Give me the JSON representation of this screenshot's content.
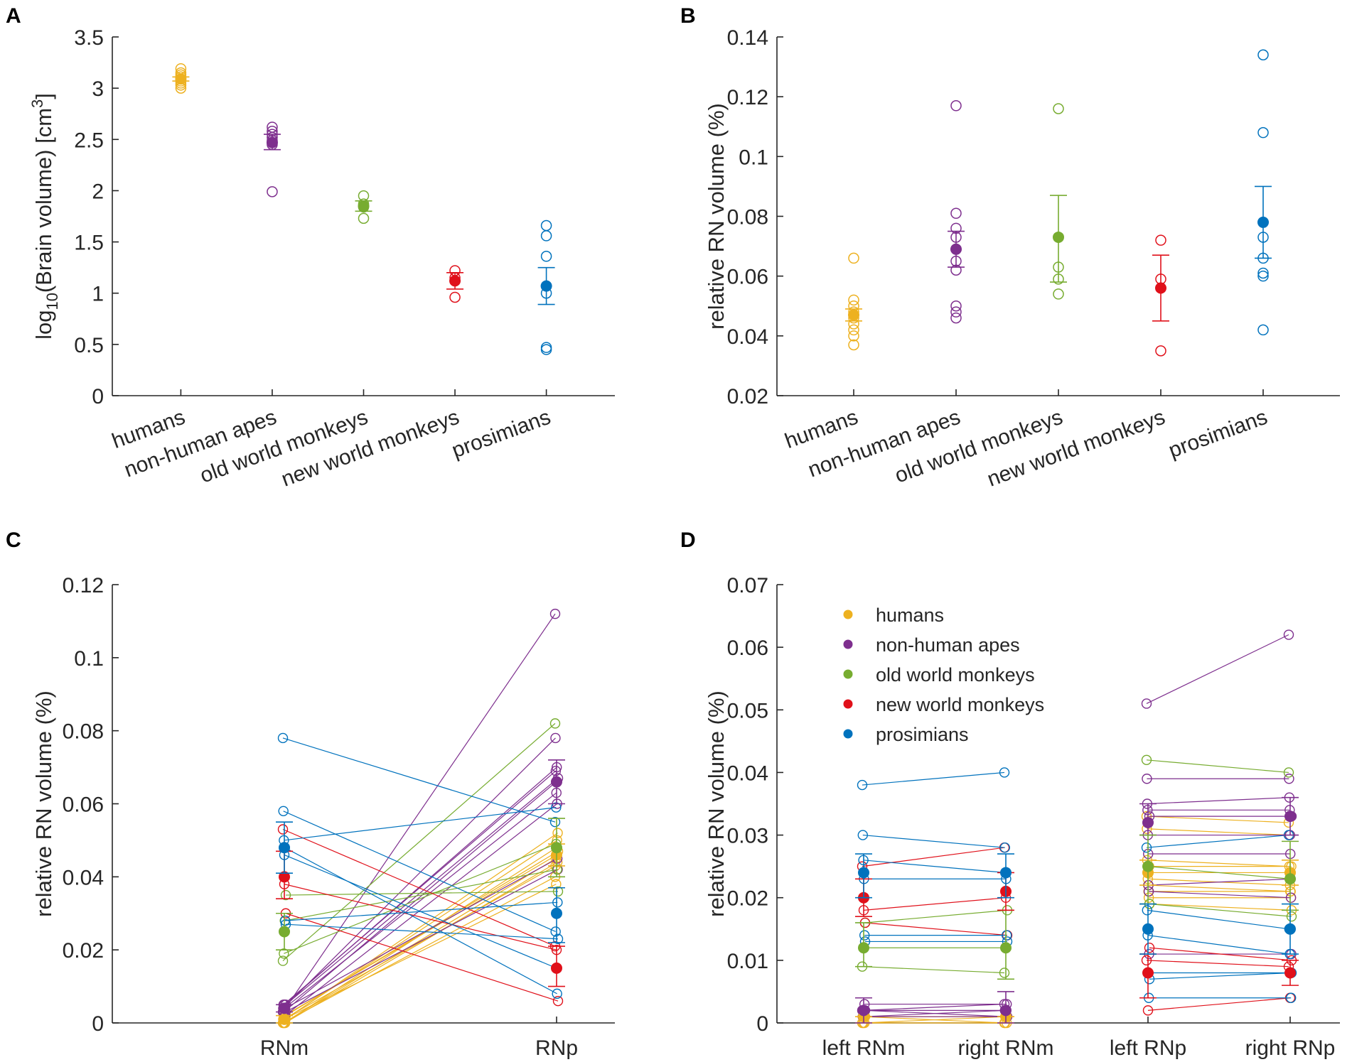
{
  "colors": {
    "humans": "#EDB120",
    "non-human apes": "#7E2F8E",
    "old world monkeys": "#77AC30",
    "new world monkeys": "#E0101A",
    "prosimians": "#0072BD"
  },
  "chart_data": [
    {
      "panel": "A",
      "type": "scatter",
      "categories": [
        "humans",
        "non-human apes",
        "old world monkeys",
        "new world monkeys",
        "prosimians"
      ],
      "ylabel_main": "log",
      "ylabel_sub": "10",
      "ylabel_rest": "(Brain volume) [cm",
      "ylabel_sup": "3",
      "ylabel_end": "]",
      "ylim": [
        0,
        3.5
      ],
      "yticks": [
        0,
        0.5,
        1,
        1.5,
        2,
        2.5,
        3,
        3.5
      ],
      "ytick_labels": [
        "0",
        "0.5",
        "1",
        "1.5",
        "2",
        "2.5",
        "3",
        "3.5"
      ],
      "series": [
        {
          "name": "humans",
          "points": [
            3.0,
            3.03,
            3.05,
            3.07,
            3.09,
            3.11,
            3.13,
            3.15,
            3.19
          ],
          "mean": 3.09,
          "err": [
            3.07,
            3.11
          ]
        },
        {
          "name": "non-human apes",
          "points": [
            1.99,
            2.45,
            2.47,
            2.49,
            2.52,
            2.55,
            2.58,
            2.62
          ],
          "mean": 2.47,
          "err": [
            2.4,
            2.55
          ]
        },
        {
          "name": "old world monkeys",
          "points": [
            1.73,
            1.84,
            1.87,
            1.95
          ],
          "mean": 1.85,
          "err": [
            1.8,
            1.9
          ]
        },
        {
          "name": "new world monkeys",
          "points": [
            0.96,
            1.15,
            1.22
          ],
          "mean": 1.12,
          "err": [
            1.04,
            1.2
          ]
        },
        {
          "name": "prosimians",
          "points": [
            0.45,
            0.47,
            1.0,
            1.36,
            1.56,
            1.66
          ],
          "mean": 1.07,
          "err": [
            0.89,
            1.25
          ]
        }
      ]
    },
    {
      "panel": "B",
      "type": "scatter",
      "categories": [
        "humans",
        "non-human apes",
        "old world monkeys",
        "new world monkeys",
        "prosimians"
      ],
      "ylabel": "relative RN volume (%)",
      "ylim": [
        0.02,
        0.14
      ],
      "yticks": [
        0.02,
        0.04,
        0.06,
        0.08,
        0.1,
        0.12,
        0.14
      ],
      "ytick_labels": [
        "0.02",
        "0.04",
        "0.06",
        "0.08",
        "0.1",
        "0.12",
        "0.14"
      ],
      "series": [
        {
          "name": "humans",
          "points": [
            0.037,
            0.04,
            0.042,
            0.044,
            0.046,
            0.047,
            0.048,
            0.05,
            0.052,
            0.066
          ],
          "mean": 0.047,
          "err": [
            0.045,
            0.049
          ]
        },
        {
          "name": "non-human apes",
          "points": [
            0.046,
            0.048,
            0.05,
            0.062,
            0.065,
            0.069,
            0.073,
            0.076,
            0.081,
            0.117
          ],
          "mean": 0.069,
          "err": [
            0.063,
            0.075
          ]
        },
        {
          "name": "old world monkeys",
          "points": [
            0.054,
            0.059,
            0.063,
            0.116
          ],
          "mean": 0.073,
          "err": [
            0.058,
            0.087
          ]
        },
        {
          "name": "new world monkeys",
          "points": [
            0.035,
            0.059,
            0.072
          ],
          "mean": 0.056,
          "err": [
            0.045,
            0.067
          ]
        },
        {
          "name": "prosimians",
          "points": [
            0.042,
            0.06,
            0.061,
            0.066,
            0.073,
            0.108,
            0.134
          ],
          "mean": 0.078,
          "err": [
            0.066,
            0.09
          ]
        }
      ]
    },
    {
      "panel": "C",
      "type": "line",
      "categories": [
        "RNm",
        "RNp"
      ],
      "ylabel": "relative RN volume (%)",
      "ylim": [
        0,
        0.12
      ],
      "yticks": [
        0,
        0.02,
        0.04,
        0.06,
        0.08,
        0.1,
        0.12
      ],
      "ytick_labels": [
        "0",
        "0.02",
        "0.04",
        "0.06",
        "0.08",
        "0.1",
        "0.12"
      ],
      "series": [
        {
          "name": "humans",
          "pairs": [
            [
              0.0,
              0.04
            ],
            [
              0.001,
              0.043
            ],
            [
              0.0,
              0.045
            ],
            [
              0.001,
              0.038
            ],
            [
              0.0,
              0.048
            ],
            [
              0.002,
              0.046
            ],
            [
              0.001,
              0.05
            ],
            [
              0.0,
              0.044
            ],
            [
              0.001,
              0.052
            ],
            [
              0.002,
              0.047
            ]
          ],
          "mean": [
            0.001,
            0.046
          ],
          "err": [
            [
              0.0,
              0.002
            ],
            [
              0.043,
              0.049
            ]
          ]
        },
        {
          "name": "non-human apes",
          "pairs": [
            [
              0.003,
              0.112
            ],
            [
              0.004,
              0.078
            ],
            [
              0.005,
              0.069
            ],
            [
              0.003,
              0.066
            ],
            [
              0.004,
              0.063
            ],
            [
              0.005,
              0.07
            ],
            [
              0.002,
              0.06
            ],
            [
              0.004,
              0.045
            ],
            [
              0.003,
              0.042
            ],
            [
              0.005,
              0.067
            ]
          ],
          "mean": [
            0.004,
            0.066
          ],
          "err": [
            [
              0.003,
              0.005
            ],
            [
              0.06,
              0.072
            ]
          ]
        },
        {
          "name": "old world monkeys",
          "pairs": [
            [
              0.017,
              0.082
            ],
            [
              0.019,
              0.049
            ],
            [
              0.028,
              0.042
            ],
            [
              0.035,
              0.036
            ]
          ],
          "mean": [
            0.025,
            0.048
          ],
          "err": [
            [
              0.02,
              0.03
            ],
            [
              0.04,
              0.056
            ]
          ]
        },
        {
          "name": "new world monkeys",
          "pairs": [
            [
              0.053,
              0.021
            ],
            [
              0.038,
              0.02
            ],
            [
              0.03,
              0.006
            ]
          ],
          "mean": [
            0.04,
            0.015
          ],
          "err": [
            [
              0.034,
              0.047
            ],
            [
              0.01,
              0.021
            ]
          ]
        },
        {
          "name": "prosimians",
          "pairs": [
            [
              0.078,
              0.055
            ],
            [
              0.058,
              0.025
            ],
            [
              0.05,
              0.059
            ],
            [
              0.046,
              0.015
            ],
            [
              0.048,
              0.008
            ],
            [
              0.028,
              0.033
            ],
            [
              0.027,
              0.023
            ]
          ],
          "mean": [
            0.048,
            0.03
          ],
          "err": [
            [
              0.041,
              0.055
            ],
            [
              0.022,
              0.037
            ]
          ]
        }
      ]
    },
    {
      "panel": "D",
      "type": "line",
      "categories": [
        "left RNm",
        "right RNm",
        "left RNp",
        "right RNp"
      ],
      "ylabel": "relative RN volume (%)",
      "ylim": [
        0,
        0.07
      ],
      "yticks": [
        0,
        0.01,
        0.02,
        0.03,
        0.04,
        0.05,
        0.06,
        0.07
      ],
      "ytick_labels": [
        "0",
        "0.01",
        "0.02",
        "0.03",
        "0.04",
        "0.05",
        "0.06",
        "0.07"
      ],
      "legend": [
        "humans",
        "non-human apes",
        "old world monkeys",
        "new world monkeys",
        "prosimians"
      ],
      "series": [
        {
          "name": "humans",
          "m_pairs": [
            [
              0.0,
              0.0
            ],
            [
              0.001,
              0.0
            ],
            [
              0.0,
              0.001
            ],
            [
              0.001,
              0.001
            ],
            [
              0.0,
              0.0
            ],
            [
              0.001,
              0.001
            ]
          ],
          "p_pairs": [
            [
              0.033,
              0.032
            ],
            [
              0.031,
              0.03
            ],
            [
              0.026,
              0.025
            ],
            [
              0.024,
              0.024
            ],
            [
              0.023,
              0.022
            ],
            [
              0.022,
              0.021
            ],
            [
              0.021,
              0.021
            ],
            [
              0.02,
              0.02
            ],
            [
              0.025,
              0.025
            ],
            [
              0.019,
              0.018
            ]
          ],
          "mean": [
            0.001,
            0.001,
            0.024,
            0.024
          ],
          "err": [
            [
              0.0,
              0.001
            ],
            [
              0.0,
              0.001
            ],
            [
              0.022,
              0.026
            ],
            [
              0.022,
              0.026
            ]
          ]
        },
        {
          "name": "non-human apes",
          "m_pairs": [
            [
              0.002,
              0.003
            ],
            [
              0.001,
              0.002
            ],
            [
              0.002,
              0.002
            ],
            [
              0.001,
              0.001
            ],
            [
              0.003,
              0.003
            ],
            [
              0.002,
              0.001
            ]
          ],
          "p_pairs": [
            [
              0.051,
              0.062
            ],
            [
              0.039,
              0.039
            ],
            [
              0.035,
              0.036
            ],
            [
              0.034,
              0.034
            ],
            [
              0.03,
              0.03
            ],
            [
              0.027,
              0.027
            ],
            [
              0.022,
              0.023
            ],
            [
              0.021,
              0.02
            ],
            [
              0.011,
              0.011
            ],
            [
              0.033,
              0.033
            ]
          ],
          "mean": [
            0.002,
            0.002,
            0.032,
            0.033
          ],
          "err": [
            [
              0.0,
              0.004
            ],
            [
              0.0,
              0.005
            ],
            [
              0.03,
              0.035
            ],
            [
              0.03,
              0.036
            ]
          ]
        },
        {
          "name": "old world monkeys",
          "m_pairs": [
            [
              0.009,
              0.008
            ],
            [
              0.012,
              0.012
            ],
            [
              0.016,
              0.018
            ]
          ],
          "p_pairs": [
            [
              0.042,
              0.04
            ],
            [
              0.025,
              0.023
            ],
            [
              0.019,
              0.017
            ]
          ],
          "mean": [
            0.012,
            0.012,
            0.025,
            0.023
          ],
          "err": [
            [
              0.009,
              0.016
            ],
            [
              0.007,
              0.018
            ],
            [
              0.019,
              0.03
            ],
            [
              0.018,
              0.029
            ]
          ]
        },
        {
          "name": "new world monkeys",
          "m_pairs": [
            [
              0.025,
              0.028
            ],
            [
              0.018,
              0.02
            ],
            [
              0.016,
              0.014
            ]
          ],
          "p_pairs": [
            [
              0.01,
              0.009
            ],
            [
              0.002,
              0.004
            ],
            [
              0.012,
              0.01
            ]
          ],
          "mean": [
            0.02,
            0.021,
            0.008,
            0.008
          ],
          "err": [
            [
              0.017,
              0.023
            ],
            [
              0.018,
              0.024
            ],
            [
              0.004,
              0.011
            ],
            [
              0.006,
              0.01
            ]
          ]
        },
        {
          "name": "prosimians",
          "m_pairs": [
            [
              0.038,
              0.04
            ],
            [
              0.03,
              0.028
            ],
            [
              0.026,
              0.024
            ],
            [
              0.023,
              0.023
            ],
            [
              0.014,
              0.014
            ],
            [
              0.013,
              0.013
            ]
          ],
          "p_pairs": [
            [
              0.028,
              0.03
            ],
            [
              0.018,
              0.015
            ],
            [
              0.014,
              0.011
            ],
            [
              0.008,
              0.008
            ],
            [
              0.004,
              0.004
            ],
            [
              0.007,
              0.008
            ]
          ],
          "mean": [
            0.024,
            0.024,
            0.015,
            0.015
          ],
          "err": [
            [
              0.02,
              0.027
            ],
            [
              0.02,
              0.027
            ],
            [
              0.011,
              0.019
            ],
            [
              0.011,
              0.019
            ]
          ]
        }
      ]
    }
  ]
}
